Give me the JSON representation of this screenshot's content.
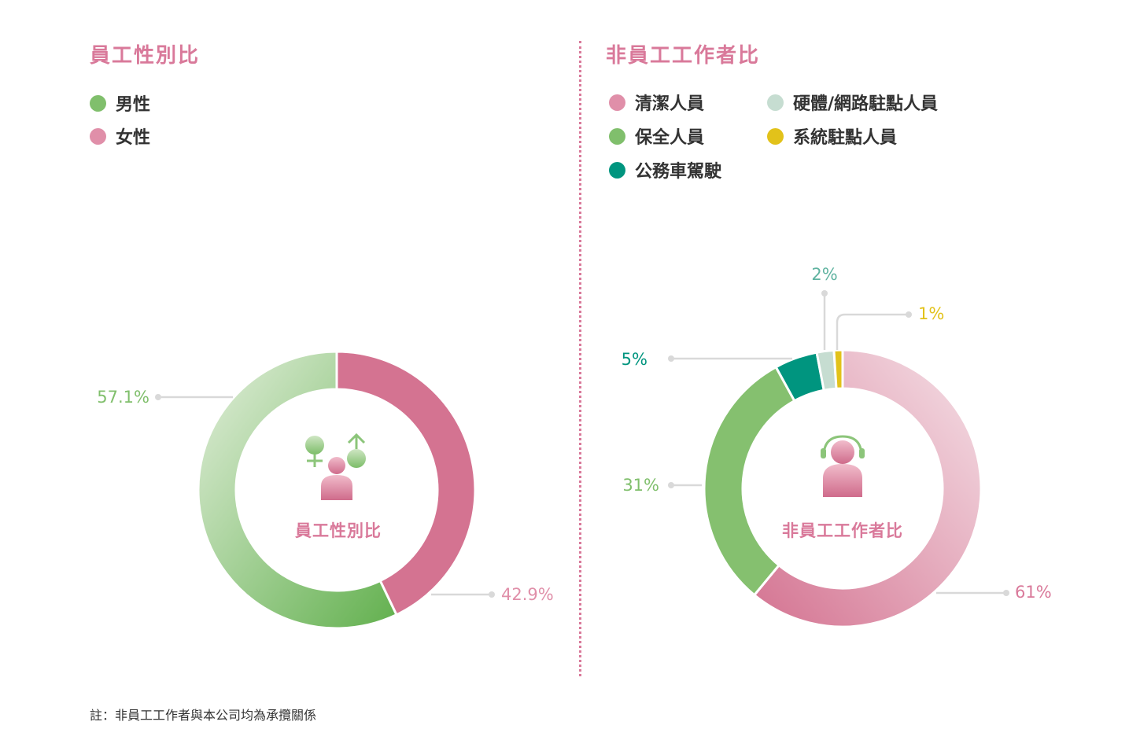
{
  "left_panel": {
    "title": "員工性別比",
    "legend": [
      {
        "label": "男性",
        "color": "#80bf6c"
      },
      {
        "label": "女性",
        "color": "#e08fa9"
      }
    ],
    "center_label": "員工性別比"
  },
  "right_panel": {
    "title": "非員工工作者比",
    "legend": [
      {
        "label": "清潔人員",
        "color": "#e08fa9"
      },
      {
        "label": "硬體/網路駐點人員",
        "color": "#c6ddd1"
      },
      {
        "label": "保全人員",
        "color": "#80bf6c"
      },
      {
        "label": "系統駐點人員",
        "color": "#e2c21a"
      },
      {
        "label": "公務車駕駛",
        "color": "#00957f"
      }
    ],
    "center_label": "非員工工作者比"
  },
  "footnote": "註：非員工工作者與本公司均為承攬關係",
  "chart_data": [
    {
      "type": "pie",
      "title": "員工性別比",
      "donut": true,
      "slices": [
        {
          "label": "女性",
          "value": 42.9,
          "display": "42.9%",
          "color": "#d47391"
        },
        {
          "label": "男性",
          "value": 57.1,
          "display": "57.1%",
          "color": "#80bf6c"
        }
      ],
      "legend_placement": "top-left"
    },
    {
      "type": "pie",
      "title": "非員工工作者比",
      "donut": true,
      "slices": [
        {
          "label": "清潔人員",
          "value": 61,
          "display": "61%",
          "color": "#e08fa9"
        },
        {
          "label": "保全人員",
          "value": 31,
          "display": "31%",
          "color": "#80bf6c"
        },
        {
          "label": "公務車駕駛",
          "value": 5,
          "display": "5%",
          "color": "#00957f"
        },
        {
          "label": "硬體/網路駐點人員",
          "value": 2,
          "display": "2%",
          "color": "#c6ddd1"
        },
        {
          "label": "系統駐點人員",
          "value": 1,
          "display": "1%",
          "color": "#e2c21a"
        }
      ],
      "legend_placement": "top-left"
    }
  ]
}
